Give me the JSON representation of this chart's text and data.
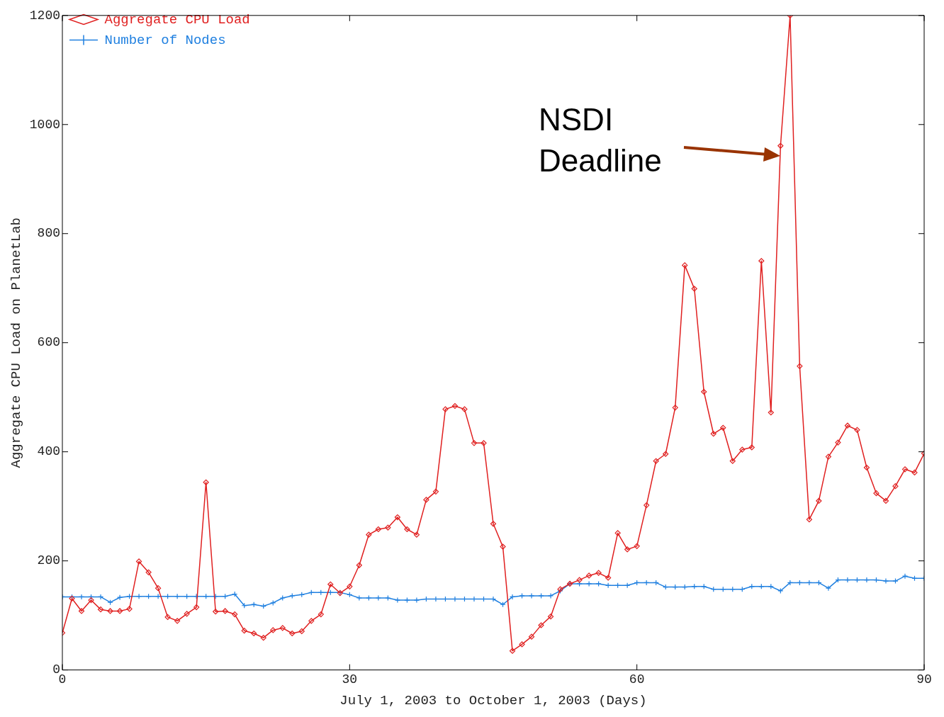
{
  "chart_data": {
    "type": "line",
    "xlabel": "July 1, 2003 to October 1, 2003 (Days)",
    "ylabel": "Aggregate CPU Load on PlanetLab",
    "x": [
      0,
      1,
      2,
      3,
      4,
      5,
      6,
      7,
      8,
      9,
      10,
      11,
      12,
      13,
      14,
      15,
      16,
      17,
      18,
      19,
      20,
      21,
      22,
      23,
      24,
      25,
      26,
      27,
      28,
      29,
      30,
      31,
      32,
      33,
      34,
      35,
      36,
      37,
      38,
      39,
      40,
      41,
      42,
      43,
      44,
      45,
      46,
      47,
      48,
      49,
      50,
      51,
      52,
      53,
      54,
      55,
      56,
      57,
      58,
      59,
      60,
      61,
      62,
      63,
      64,
      65,
      66,
      67,
      68,
      69,
      70,
      71,
      72,
      73,
      74,
      75,
      76,
      77,
      78,
      79,
      80,
      81,
      82,
      83,
      84,
      85,
      86,
      87,
      88,
      89,
      90
    ],
    "series": [
      {
        "name": "Aggregate CPU Load",
        "color": "#e02020",
        "marker": "diamond",
        "values": [
          68,
          131,
          108,
          128,
          111,
          108,
          108,
          112,
          199,
          179,
          150,
          97,
          90,
          103,
          115,
          344,
          107,
          108,
          102,
          72,
          67,
          59,
          73,
          77,
          67,
          71,
          90,
          102,
          157,
          141,
          153,
          192,
          248,
          258,
          261,
          280,
          258,
          248,
          312,
          327,
          478,
          484,
          478,
          416,
          416,
          268,
          226,
          35,
          47,
          61,
          82,
          98,
          148,
          158,
          165,
          173,
          178,
          169,
          251,
          221,
          227,
          302,
          383,
          396,
          481,
          742,
          699,
          510,
          433,
          444,
          383,
          404,
          408,
          750,
          472,
          961,
          1200,
          557,
          276,
          310,
          391,
          417,
          448,
          440,
          371,
          324,
          310,
          337,
          368,
          362,
          397
        ]
      },
      {
        "name": "Number of Nodes",
        "color": "#2080e0",
        "marker": "cross",
        "values": [
          134,
          134,
          134,
          134,
          134,
          124,
          133,
          135,
          135,
          135,
          135,
          135,
          135,
          135,
          135,
          135,
          135,
          135,
          139,
          118,
          120,
          117,
          123,
          132,
          136,
          138,
          142,
          142,
          142,
          142,
          138,
          132,
          132,
          132,
          132,
          128,
          128,
          128,
          130,
          130,
          130,
          130,
          130,
          130,
          130,
          130,
          120,
          134,
          136,
          136,
          136,
          136,
          145,
          158,
          158,
          158,
          158,
          155,
          155,
          155,
          160,
          160,
          160,
          152,
          152,
          152,
          153,
          153,
          148,
          148,
          148,
          148,
          153,
          153,
          153,
          145,
          160,
          160,
          160,
          160,
          150,
          165,
          165,
          165,
          165,
          165,
          163,
          163,
          172,
          168,
          168
        ]
      }
    ],
    "xlim": [
      0,
      90
    ],
    "xticks": [
      0,
      30,
      60,
      90
    ],
    "ylim": [
      0,
      1200
    ],
    "yticks": [
      0,
      200,
      400,
      600,
      800,
      1000,
      1200
    ],
    "grid": false,
    "legend": "top left",
    "line_style": "solid",
    "annotations": [
      "NSDI\nDeadline"
    ]
  }
}
